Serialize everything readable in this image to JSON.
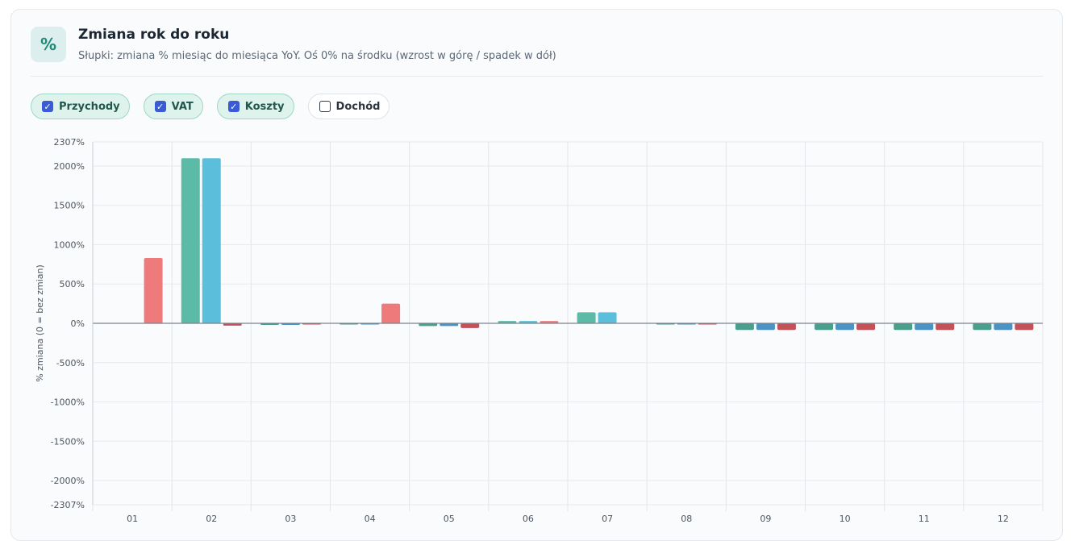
{
  "header": {
    "icon_glyph": "%",
    "icon_name": "percent-icon",
    "title": "Zmiana rok do roku",
    "subtitle": "Słupki: zmiana % miesiąc do miesiąca YoY. Oś 0% na środku (wzrost w górę / spadek w dół)"
  },
  "toggles": [
    {
      "label": "Przychody",
      "checked": true
    },
    {
      "label": "VAT",
      "checked": true
    },
    {
      "label": "Koszty",
      "checked": true
    },
    {
      "label": "Dochód",
      "checked": false
    }
  ],
  "chart_data": {
    "type": "bar",
    "xlabel": "",
    "ylabel": "% zmiana (0 = bez zmian)",
    "ylim": [
      -2307,
      2307
    ],
    "y_ticks": [
      2307,
      2000,
      1500,
      1000,
      500,
      0,
      -500,
      -1000,
      -1500,
      -2000,
      -2307
    ],
    "y_tick_labels": [
      "2307%",
      "2000%",
      "1500%",
      "1000%",
      "500%",
      "0%",
      "-500%",
      "-1000%",
      "-1500%",
      "-2000%",
      "-2307%"
    ],
    "categories": [
      "01",
      "02",
      "03",
      "04",
      "05",
      "06",
      "07",
      "08",
      "09",
      "10",
      "11",
      "12"
    ],
    "grid": true,
    "series": [
      {
        "name": "Przychody",
        "color": "#5bbba6",
        "neg_color": "#4a9e8c",
        "values": [
          0,
          2100,
          -20,
          -10,
          -35,
          30,
          140,
          -15,
          -85,
          -85,
          -85,
          -85
        ]
      },
      {
        "name": "VAT",
        "color": "#5bbedb",
        "neg_color": "#4a93c2",
        "values": [
          0,
          2100,
          -20,
          -10,
          -35,
          30,
          140,
          -15,
          -85,
          -85,
          -85,
          -85
        ]
      },
      {
        "name": "Koszty",
        "color": "#ee7a7c",
        "neg_color": "#c25257",
        "values": [
          830,
          -30,
          -5,
          250,
          -60,
          30,
          0,
          -5,
          -85,
          -85,
          -85,
          -85
        ]
      }
    ]
  }
}
